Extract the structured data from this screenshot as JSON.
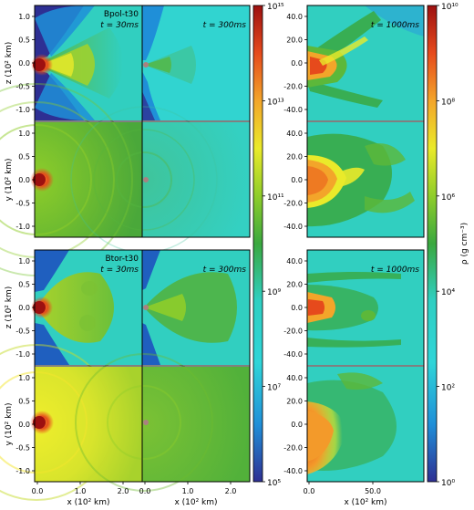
{
  "figure": {
    "colormap": [
      "#2e2f93",
      "#1f8fd8",
      "#2fd5d8",
      "#2fcfc2",
      "#3aa83f",
      "#8fcd2a",
      "#eaea2a",
      "#f3a52a",
      "#e64a1c",
      "#9d1010"
    ],
    "rows": [
      {
        "model": "Bpol-t30",
        "vaxis": "z (10² km)",
        "plane": "xz",
        "times": [
          "t = 30ms",
          "t = 300ms",
          "t = 1000ms"
        ]
      },
      {
        "model": "",
        "vaxis": "y (10² km)",
        "plane": "xy",
        "times": [
          "",
          "",
          ""
        ]
      },
      {
        "model": "Btor-t30",
        "vaxis": "z (10² km)",
        "plane": "xz",
        "times": [
          "t = 30ms",
          "t = 300ms",
          "t = 1000ms"
        ]
      },
      {
        "model": "",
        "vaxis": "y (10² km)",
        "plane": "xy",
        "times": [
          "",
          "",
          ""
        ]
      }
    ],
    "xlabel": "x (10² km)",
    "small_ticks_x": [
      "0.0",
      "1.0",
      "2.0"
    ],
    "small_ticks_y": [
      "1.0",
      "0.5",
      "0.0",
      "-0.5",
      "-1.0"
    ],
    "large_ticks_x": [
      "0.0",
      "50.0"
    ],
    "large_ticks_y": [
      "40.0",
      "20.0",
      "0.0",
      "-20.0",
      "-40.0"
    ],
    "colorbar_small": {
      "ticks": [
        "10¹⁵",
        "10¹³",
        "10¹¹",
        "10⁹",
        "10⁷",
        "10⁵"
      ]
    },
    "colorbar_large": {
      "label": "ρ (g cm⁻³)",
      "ticks": [
        "10¹⁰",
        "10⁸",
        "10⁶",
        "10⁴",
        "10²",
        "10⁰"
      ]
    }
  }
}
